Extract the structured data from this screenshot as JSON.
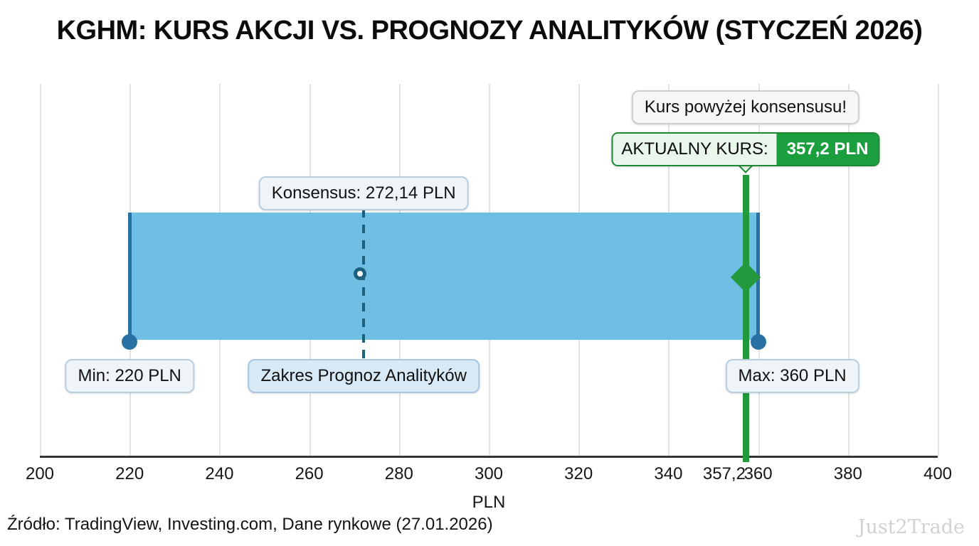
{
  "title": "KGHM: KURS AKCJI VS. PROGNOZY ANALITYKÓW (STYCZEŃ 2026)",
  "callouts": {
    "status": "Kurs powyżej konsensusu!",
    "current_label": "AKTUALNY KURS:",
    "current_value": "357,2 PLN",
    "consensus": "Konsensus: 272,14 PLN",
    "min": "Min: 220 PLN",
    "max": "Max: 360 PLN",
    "range": "Zakres Prognoz Analityków"
  },
  "axis": {
    "label": "PLN",
    "ticks": [
      {
        "label": "200",
        "value": 200
      },
      {
        "label": "220",
        "value": 220
      },
      {
        "label": "240",
        "value": 240
      },
      {
        "label": "260",
        "value": 260
      },
      {
        "label": "280",
        "value": 280
      },
      {
        "label": "300",
        "value": 300
      },
      {
        "label": "320",
        "value": 320
      },
      {
        "label": "340",
        "value": 340
      },
      {
        "label": "357,2",
        "value": 357.2,
        "anchor": "right",
        "grid": false
      },
      {
        "label": "360",
        "value": 360
      },
      {
        "label": "380",
        "value": 380
      },
      {
        "label": "400",
        "value": 400
      }
    ]
  },
  "footer": {
    "source": "Źródło: TradingView, Investing.com, Dane rynkowe (27.01.2026)",
    "watermark": "Just2Trade"
  },
  "colors": {
    "band_fill": "#6fbfe4",
    "band_edge": "#2a71a3",
    "consensus_blue": "#1d6180",
    "current_green": "#22993c",
    "green_value_bg": "#1b9e3e",
    "green_light_bg": "#e9f6ec",
    "green_border": "#1d8735",
    "label_box_bg": "#eff4f9",
    "label_box_border": "#b8cede",
    "range_box_bg": "#d8e9f6",
    "range_box_border": "#a6c6e1",
    "neutral_box_bg": "#f6f6f6",
    "neutral_box_border": "#cdcdcd",
    "grid": "#e3e3e3",
    "axis_line": "#333333",
    "watermark": "#d2d2d2"
  },
  "chart_data": {
    "type": "bar",
    "subtype": "horizontal-floating-range-indicator",
    "title": "KGHM: KURS AKCJI VS. PROGNOZY ANALITYKÓW (STYCZEŃ 2026)",
    "xlabel": "PLN",
    "ylabel": "",
    "xlim": [
      200,
      400
    ],
    "x_ticks": [
      200,
      220,
      240,
      260,
      280,
      300,
      320,
      340,
      357.2,
      360,
      380,
      400
    ],
    "grid": true,
    "legend_position": "none",
    "unit": "PLN",
    "values": {
      "forecast_min": 220,
      "forecast_max": 360,
      "consensus": 272.14,
      "current_price": 357.2
    },
    "annotations": [
      "Kurs powyżej konsensusu!",
      "AKTUALNY KURS: 357,2 PLN",
      "Konsensus: 272,14 PLN",
      "Min: 220 PLN",
      "Max: 360 PLN",
      "Zakres Prognoz Analityków"
    ],
    "source": "Źródło: TradingView, Investing.com, Dane rynkowe (27.01.2026)"
  }
}
